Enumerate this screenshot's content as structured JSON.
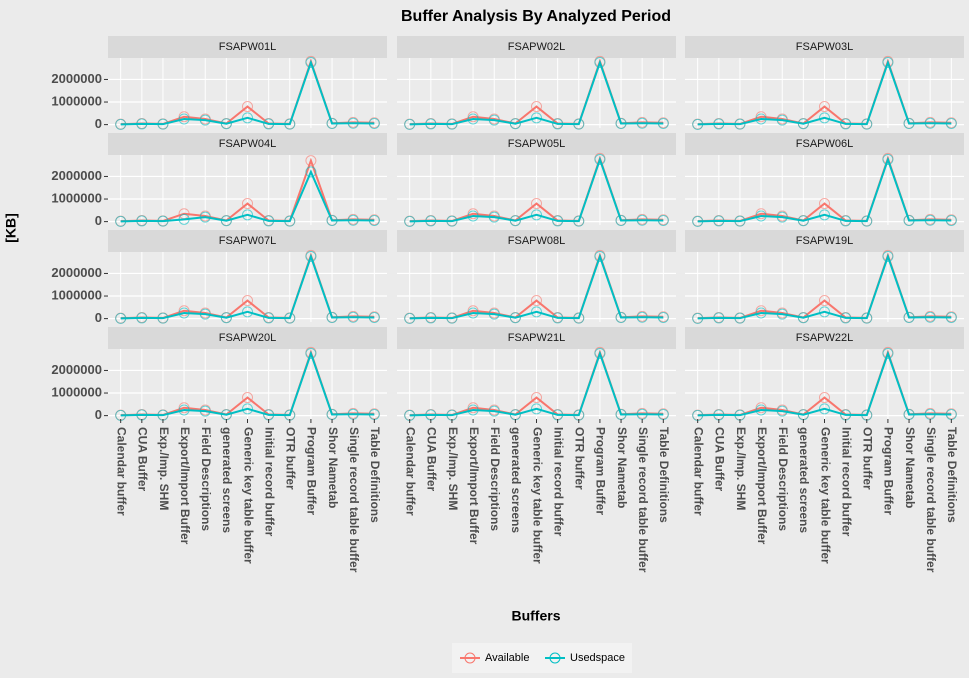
{
  "title": "Buffer Analysis By Analyzed Period",
  "x_label": "Buffers",
  "y_label": "[KB]",
  "chart_data": [
    {
      "type": "line",
      "title": "FSAPW01L",
      "categories": [
        "Calendar buffer",
        "CUA Buffer",
        "Exp./Imp. SHM",
        "Export/Import Buffer",
        "Field Descriptions",
        "generated screens",
        "Generic key table buffer",
        "Initial record buffer",
        "OTR buffer",
        "Program Buffer",
        "Shor Nametab",
        "Single record table buffer",
        "Table Definitions"
      ],
      "series": [
        {
          "name": "Available",
          "color": "#F8766D",
          "values": [
            20000,
            50000,
            30000,
            350000,
            250000,
            50000,
            800000,
            50000,
            30000,
            2800000,
            60000,
            100000,
            80000
          ]
        },
        {
          "name": "Usedspace",
          "color": "#00BFC4",
          "values": [
            10000,
            30000,
            20000,
            250000,
            200000,
            40000,
            300000,
            30000,
            20000,
            2750000,
            50000,
            60000,
            50000
          ]
        }
      ],
      "ylim": [
        -150000,
        2950000
      ],
      "yticks": [
        0,
        1000000,
        2000000
      ],
      "grid": true
    },
    {
      "type": "line",
      "title": "FSAPW02L",
      "categories": [
        "Calendar buffer",
        "CUA Buffer",
        "Exp./Imp. SHM",
        "Export/Import Buffer",
        "Field Descriptions",
        "generated screens",
        "Generic key table buffer",
        "Initial record buffer",
        "OTR buffer",
        "Program Buffer",
        "Shor Nametab",
        "Single record table buffer",
        "Table Definitions"
      ],
      "series": [
        {
          "name": "Available",
          "color": "#F8766D",
          "values": [
            20000,
            50000,
            30000,
            350000,
            250000,
            50000,
            800000,
            50000,
            30000,
            2800000,
            60000,
            100000,
            80000
          ]
        },
        {
          "name": "Usedspace",
          "color": "#00BFC4",
          "values": [
            10000,
            30000,
            20000,
            250000,
            200000,
            40000,
            300000,
            30000,
            20000,
            2750000,
            50000,
            60000,
            50000
          ]
        }
      ],
      "ylim": [
        -150000,
        2950000
      ],
      "yticks": [
        0,
        1000000,
        2000000
      ],
      "grid": true
    },
    {
      "type": "line",
      "title": "FSAPW03L",
      "categories": [
        "Calendar buffer",
        "CUA Buffer",
        "Exp./Imp. SHM",
        "Export/Import Buffer",
        "Field Descriptions",
        "generated screens",
        "Generic key table buffer",
        "Initial record buffer",
        "OTR buffer",
        "Program Buffer",
        "Shor Nametab",
        "Single record table buffer",
        "Table Definitions"
      ],
      "series": [
        {
          "name": "Available",
          "color": "#F8766D",
          "values": [
            20000,
            50000,
            30000,
            350000,
            250000,
            50000,
            800000,
            50000,
            30000,
            2800000,
            60000,
            100000,
            80000
          ]
        },
        {
          "name": "Usedspace",
          "color": "#00BFC4",
          "values": [
            10000,
            30000,
            20000,
            250000,
            200000,
            40000,
            300000,
            30000,
            20000,
            2750000,
            50000,
            60000,
            50000
          ]
        }
      ],
      "ylim": [
        -150000,
        2950000
      ],
      "yticks": [
        0,
        1000000,
        2000000
      ],
      "grid": true
    },
    {
      "type": "line",
      "title": "FSAPW04L",
      "categories": [
        "Calendar buffer",
        "CUA Buffer",
        "Exp./Imp. SHM",
        "Export/Import Buffer",
        "Field Descriptions",
        "generated screens",
        "Generic key table buffer",
        "Initial record buffer",
        "OTR buffer",
        "Program Buffer",
        "Shor Nametab",
        "Single record table buffer",
        "Table Definitions"
      ],
      "series": [
        {
          "name": "Available",
          "color": "#F8766D",
          "values": [
            20000,
            50000,
            30000,
            350000,
            250000,
            50000,
            800000,
            50000,
            30000,
            2700000,
            60000,
            100000,
            80000
          ]
        },
        {
          "name": "Usedspace",
          "color": "#00BFC4",
          "values": [
            10000,
            30000,
            20000,
            100000,
            200000,
            40000,
            300000,
            30000,
            20000,
            2200000,
            50000,
            60000,
            50000
          ]
        }
      ],
      "ylim": [
        -150000,
        2950000
      ],
      "yticks": [
        0,
        1000000,
        2000000
      ],
      "grid": true
    },
    {
      "type": "line",
      "title": "FSAPW05L",
      "categories": [
        "Calendar buffer",
        "CUA Buffer",
        "Exp./Imp. SHM",
        "Export/Import Buffer",
        "Field Descriptions",
        "generated screens",
        "Generic key table buffer",
        "Initial record buffer",
        "OTR buffer",
        "Program Buffer",
        "Shor Nametab",
        "Single record table buffer",
        "Table Definitions"
      ],
      "series": [
        {
          "name": "Available",
          "color": "#F8766D",
          "values": [
            20000,
            50000,
            30000,
            350000,
            250000,
            50000,
            800000,
            50000,
            30000,
            2800000,
            60000,
            100000,
            80000
          ]
        },
        {
          "name": "Usedspace",
          "color": "#00BFC4",
          "values": [
            10000,
            30000,
            20000,
            250000,
            200000,
            40000,
            300000,
            30000,
            20000,
            2750000,
            50000,
            60000,
            50000
          ]
        }
      ],
      "ylim": [
        -150000,
        2950000
      ],
      "yticks": [
        0,
        1000000,
        2000000
      ],
      "grid": true
    },
    {
      "type": "line",
      "title": "FSAPW06L",
      "categories": [
        "Calendar buffer",
        "CUA Buffer",
        "Exp./Imp. SHM",
        "Export/Import Buffer",
        "Field Descriptions",
        "generated screens",
        "Generic key table buffer",
        "Initial record buffer",
        "OTR buffer",
        "Program Buffer",
        "Shor Nametab",
        "Single record table buffer",
        "Table Definitions"
      ],
      "series": [
        {
          "name": "Available",
          "color": "#F8766D",
          "values": [
            20000,
            50000,
            30000,
            350000,
            250000,
            50000,
            800000,
            50000,
            30000,
            2800000,
            60000,
            100000,
            80000
          ]
        },
        {
          "name": "Usedspace",
          "color": "#00BFC4",
          "values": [
            10000,
            30000,
            20000,
            250000,
            200000,
            40000,
            300000,
            30000,
            20000,
            2750000,
            50000,
            60000,
            50000
          ]
        }
      ],
      "ylim": [
        -150000,
        2950000
      ],
      "yticks": [
        0,
        1000000,
        2000000
      ],
      "grid": true
    },
    {
      "type": "line",
      "title": "FSAPW07L",
      "categories": [
        "Calendar buffer",
        "CUA Buffer",
        "Exp./Imp. SHM",
        "Export/Import Buffer",
        "Field Descriptions",
        "generated screens",
        "Generic key table buffer",
        "Initial record buffer",
        "OTR buffer",
        "Program Buffer",
        "Shor Nametab",
        "Single record table buffer",
        "Table Definitions"
      ],
      "series": [
        {
          "name": "Available",
          "color": "#F8766D",
          "values": [
            20000,
            50000,
            30000,
            350000,
            250000,
            50000,
            800000,
            50000,
            30000,
            2800000,
            60000,
            100000,
            80000
          ]
        },
        {
          "name": "Usedspace",
          "color": "#00BFC4",
          "values": [
            10000,
            30000,
            20000,
            250000,
            200000,
            40000,
            300000,
            30000,
            20000,
            2750000,
            50000,
            60000,
            50000
          ]
        }
      ],
      "ylim": [
        -150000,
        2950000
      ],
      "yticks": [
        0,
        1000000,
        2000000
      ],
      "grid": true
    },
    {
      "type": "line",
      "title": "FSAPW08L",
      "categories": [
        "Calendar buffer",
        "CUA Buffer",
        "Exp./Imp. SHM",
        "Export/Import Buffer",
        "Field Descriptions",
        "generated screens",
        "Generic key table buffer",
        "Initial record buffer",
        "OTR buffer",
        "Program Buffer",
        "Shor Nametab",
        "Single record table buffer",
        "Table Definitions"
      ],
      "series": [
        {
          "name": "Available",
          "color": "#F8766D",
          "values": [
            20000,
            50000,
            30000,
            350000,
            250000,
            50000,
            800000,
            50000,
            30000,
            2800000,
            60000,
            100000,
            80000
          ]
        },
        {
          "name": "Usedspace",
          "color": "#00BFC4",
          "values": [
            10000,
            30000,
            20000,
            250000,
            200000,
            40000,
            300000,
            30000,
            20000,
            2750000,
            50000,
            60000,
            50000
          ]
        }
      ],
      "ylim": [
        -150000,
        2950000
      ],
      "yticks": [
        0,
        1000000,
        2000000
      ],
      "grid": true
    },
    {
      "type": "line",
      "title": "FSAPW19L",
      "categories": [
        "Calendar buffer",
        "CUA Buffer",
        "Exp./Imp. SHM",
        "Export/Import Buffer",
        "Field Descriptions",
        "generated screens",
        "Generic key table buffer",
        "Initial record buffer",
        "OTR buffer",
        "Program Buffer",
        "Shor Nametab",
        "Single record table buffer",
        "Table Definitions"
      ],
      "series": [
        {
          "name": "Available",
          "color": "#F8766D",
          "values": [
            20000,
            50000,
            30000,
            350000,
            250000,
            50000,
            800000,
            50000,
            30000,
            2800000,
            60000,
            100000,
            80000
          ]
        },
        {
          "name": "Usedspace",
          "color": "#00BFC4",
          "values": [
            10000,
            30000,
            20000,
            250000,
            200000,
            40000,
            300000,
            30000,
            20000,
            2750000,
            50000,
            60000,
            50000
          ]
        }
      ],
      "ylim": [
        -150000,
        2950000
      ],
      "yticks": [
        0,
        1000000,
        2000000
      ],
      "grid": true
    },
    {
      "type": "line",
      "title": "FSAPW20L",
      "categories": [
        "Calendar buffer",
        "CUA Buffer",
        "Exp./Imp. SHM",
        "Export/Import Buffer",
        "Field Descriptions",
        "generated screens",
        "Generic key table buffer",
        "Initial record buffer",
        "OTR buffer",
        "Program Buffer",
        "Shor Nametab",
        "Single record table buffer",
        "Table Definitions"
      ],
      "series": [
        {
          "name": "Available",
          "color": "#F8766D",
          "values": [
            20000,
            50000,
            30000,
            350000,
            250000,
            50000,
            800000,
            50000,
            30000,
            2800000,
            60000,
            100000,
            80000
          ]
        },
        {
          "name": "Usedspace",
          "color": "#00BFC4",
          "values": [
            10000,
            30000,
            20000,
            250000,
            200000,
            40000,
            300000,
            30000,
            20000,
            2750000,
            50000,
            60000,
            50000
          ]
        }
      ],
      "ylim": [
        -150000,
        2950000
      ],
      "yticks": [
        0,
        1000000,
        2000000
      ],
      "grid": true
    },
    {
      "type": "line",
      "title": "FSAPW21L",
      "categories": [
        "Calendar buffer",
        "CUA Buffer",
        "Exp./Imp. SHM",
        "Export/Import Buffer",
        "Field Descriptions",
        "generated screens",
        "Generic key table buffer",
        "Initial record buffer",
        "OTR buffer",
        "Program Buffer",
        "Shor Nametab",
        "Single record table buffer",
        "Table Definitions"
      ],
      "series": [
        {
          "name": "Available",
          "color": "#F8766D",
          "values": [
            20000,
            50000,
            30000,
            350000,
            250000,
            50000,
            800000,
            50000,
            30000,
            2800000,
            60000,
            100000,
            80000
          ]
        },
        {
          "name": "Usedspace",
          "color": "#00BFC4",
          "values": [
            10000,
            30000,
            20000,
            250000,
            200000,
            40000,
            300000,
            30000,
            20000,
            2750000,
            50000,
            60000,
            50000
          ]
        }
      ],
      "ylim": [
        -150000,
        2950000
      ],
      "yticks": [
        0,
        1000000,
        2000000
      ],
      "grid": true
    },
    {
      "type": "line",
      "title": "FSAPW22L",
      "categories": [
        "Calendar buffer",
        "CUA Buffer",
        "Exp./Imp. SHM",
        "Export/Import Buffer",
        "Field Descriptions",
        "generated screens",
        "Generic key table buffer",
        "Initial record buffer",
        "OTR buffer",
        "Program Buffer",
        "Shor Nametab",
        "Single record table buffer",
        "Table Definitions"
      ],
      "series": [
        {
          "name": "Available",
          "color": "#F8766D",
          "values": [
            20000,
            50000,
            30000,
            350000,
            250000,
            50000,
            800000,
            50000,
            30000,
            2800000,
            60000,
            100000,
            80000
          ]
        },
        {
          "name": "Usedspace",
          "color": "#00BFC4",
          "values": [
            10000,
            30000,
            20000,
            250000,
            200000,
            40000,
            300000,
            30000,
            20000,
            2750000,
            50000,
            60000,
            50000
          ]
        }
      ],
      "ylim": [
        -150000,
        2950000
      ],
      "yticks": [
        0,
        1000000,
        2000000
      ],
      "grid": true
    }
  ]
}
